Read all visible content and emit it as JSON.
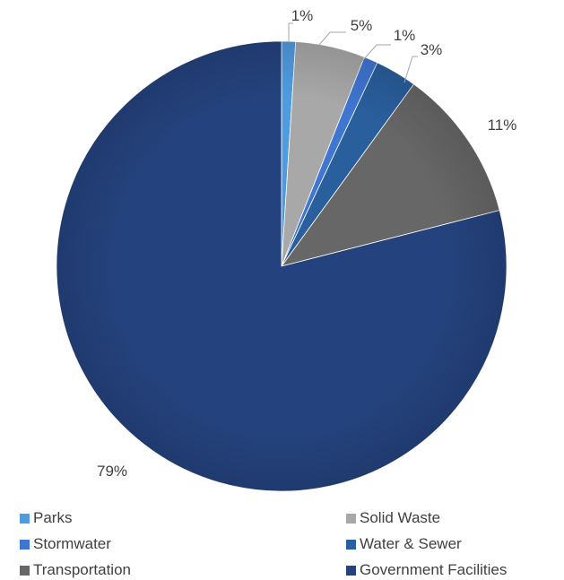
{
  "chart_data": {
    "type": "pie",
    "start_angle_deg": 0,
    "direction": "clockwise",
    "slices": [
      {
        "name": "Parks",
        "value": 1,
        "label": "1%",
        "color": "#4f9be0"
      },
      {
        "name": "Solid Waste",
        "value": 5,
        "label": "5%",
        "color": "#a8a8a8"
      },
      {
        "name": "Stormwater",
        "value": 1,
        "label": "1%",
        "color": "#3f76d2"
      },
      {
        "name": "Water & Sewer",
        "value": 3,
        "label": "3%",
        "color": "#2a5f9e"
      },
      {
        "name": "Transportation",
        "value": 11,
        "label": "11%",
        "color": "#676767"
      },
      {
        "name": "Government Facilities",
        "value": 79,
        "label": "79%",
        "color": "#24427d"
      }
    ],
    "legend_position": "bottom"
  }
}
